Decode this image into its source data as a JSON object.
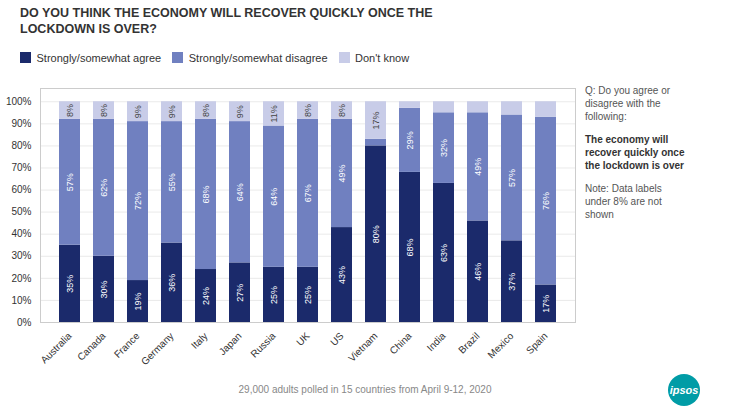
{
  "chart_data": {
    "type": "bar",
    "stacked": true,
    "title": "DO YOU THINK THE ECONOMY WILL RECOVER QUICKLY ONCE THE\nLOCKDOWN IS OVER?",
    "categories": [
      "Australia",
      "Canada",
      "France",
      "Germany",
      "Italy",
      "Japan",
      "Russia",
      "UK",
      "US",
      "Vietnam",
      "China",
      "India",
      "Brazil",
      "Mexico",
      "Spain"
    ],
    "series": [
      {
        "name": "Strongly/somewhat agree",
        "color": "#1b2a6b",
        "values": [
          35,
          30,
          19,
          36,
          24,
          27,
          25,
          25,
          43,
          80,
          68,
          63,
          46,
          37,
          17
        ],
        "value_labels": [
          "35%",
          "30%",
          "19%",
          "36%",
          "24%",
          "27%",
          "25%",
          "25%",
          "43%",
          "80%",
          "68%",
          "63%",
          "46%",
          "37%",
          "17%"
        ]
      },
      {
        "name": "Strongly/somewhat disagree",
        "color": "#7080c0",
        "values": [
          57,
          62,
          72,
          55,
          68,
          64,
          64,
          67,
          49,
          3,
          29,
          32,
          49,
          57,
          76
        ],
        "value_labels": [
          "57%",
          "62%",
          "72%",
          "55%",
          "68%",
          "64%",
          "64%",
          "67%",
          "49%",
          null,
          "29%",
          "32%",
          "49%",
          "57%",
          "76%"
        ]
      },
      {
        "name": "Don't know",
        "color": "#c8cce8",
        "values": [
          8,
          8,
          9,
          9,
          8,
          9,
          11,
          8,
          8,
          17,
          3,
          5,
          5,
          6,
          7
        ],
        "value_labels": [
          "8%",
          "8%",
          "9%",
          "9%",
          "8%",
          "9%",
          "11%",
          "8%",
          "8%",
          "17%",
          null,
          null,
          null,
          null,
          null
        ]
      }
    ],
    "ylim": [
      0,
      106
    ],
    "yticks": [
      {
        "value": 0,
        "label": "0%"
      },
      {
        "value": 10,
        "label": "10%"
      },
      {
        "value": 20,
        "label": "20%"
      },
      {
        "value": 30,
        "label": "30%"
      },
      {
        "value": 40,
        "label": "40%"
      },
      {
        "value": 50,
        "label": "50%"
      },
      {
        "value": 60,
        "label": "60%"
      },
      {
        "value": 70,
        "label": "70%"
      },
      {
        "value": 80,
        "label": "80%"
      },
      {
        "value": 90,
        "label": "90%"
      },
      {
        "value": 100,
        "label": "100%"
      }
    ],
    "grid": true,
    "legend": "top-left",
    "data_labels": true,
    "annotations": [
      "Q: Do you agree or\ndisagree with the\nfollowing:",
      "The economy will\nrecover quickly once\nthe lockdown is over",
      "Note: Data labels\nunder 8% are not\nshown"
    ],
    "caption": "29,000 adults polled in 15 countries from April 9-12, 2020",
    "logo": "ipsos"
  }
}
